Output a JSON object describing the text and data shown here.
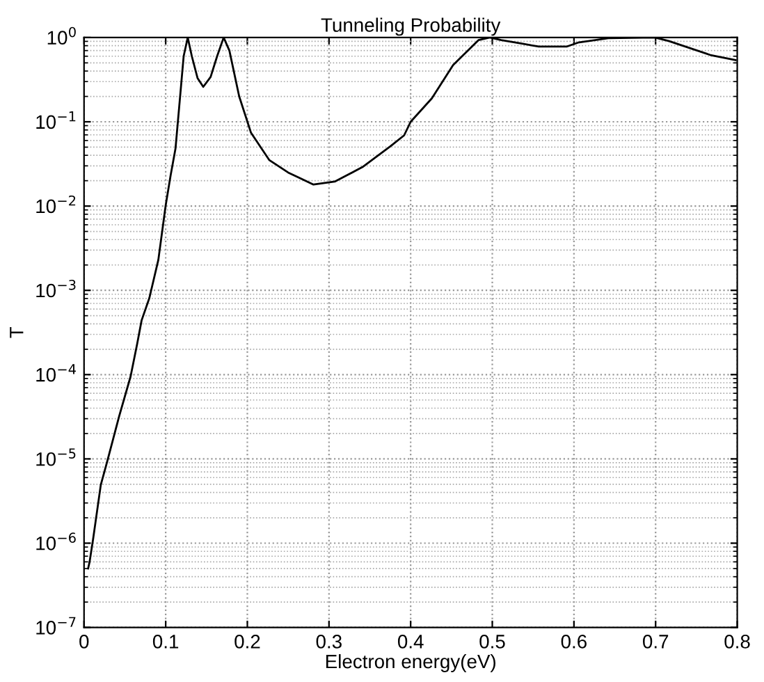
{
  "chart_data": {
    "type": "line",
    "title": "Tunneling Probability",
    "xlabel": "Electron energy(eV)",
    "ylabel": "T",
    "log": "y",
    "grid": true,
    "marker": "none",
    "line_style": "solid",
    "xlim": [
      0,
      0.8
    ],
    "xticks": [
      0,
      0.1,
      0.2,
      0.3,
      0.4,
      0.5,
      0.6,
      0.7,
      0.8
    ],
    "ylim": [
      1e-07,
      1
    ],
    "yticks": [
      {
        "value": 1e-07,
        "label": "10$^{−7}$"
      },
      {
        "value": 1e-06,
        "label": "10$^{−6}$"
      },
      {
        "value": 1e-05,
        "label": "10$^{−5}$"
      },
      {
        "value": 0.0001,
        "label": "10$^{−4}$"
      },
      {
        "value": 0.001,
        "label": "10$^{−3}$"
      },
      {
        "value": 0.01,
        "label": "10$^{−2}$"
      },
      {
        "value": 0.1,
        "label": "10$^{−1}$"
      },
      {
        "value": 1,
        "label": "10$^{0}$"
      }
    ],
    "series": [
      {
        "color": "#000000",
        "x": [
          0.005,
          0.0068,
          0.011,
          0.0205,
          0.029,
          0.043,
          0.057,
          0.065,
          0.0705,
          0.08,
          0.091,
          0.1,
          0.106,
          0.112,
          0.119,
          0.122,
          0.127,
          0.132,
          0.139,
          0.146,
          0.155,
          0.163,
          0.171,
          0.178,
          0.19,
          0.2045,
          0.227,
          0.25,
          0.281,
          0.307,
          0.341,
          0.375,
          0.392,
          0.4,
          0.426,
          0.452,
          0.483,
          0.497,
          0.511,
          0.535,
          0.557,
          0.591,
          0.605,
          0.642,
          0.699,
          0.716,
          0.767,
          0.798
        ],
        "values": [
          5e-07,
          6e-07,
          1.1e-06,
          4.9e-06,
          9.8e-06,
          3.2e-05,
          9.5e-05,
          0.00023,
          0.00044,
          0.00081,
          0.0023,
          0.0102,
          0.023,
          0.048,
          0.28,
          0.6,
          1,
          0.6,
          0.33,
          0.26,
          0.34,
          0.6,
          1,
          0.7,
          0.2,
          0.074,
          0.035,
          0.025,
          0.018,
          0.0195,
          0.029,
          0.051,
          0.069,
          0.1,
          0.19,
          0.47,
          0.93,
          1,
          0.93,
          0.85,
          0.78,
          0.78,
          0.87,
          0.98,
          1,
          0.91,
          0.62,
          0.54
        ]
      }
    ]
  }
}
